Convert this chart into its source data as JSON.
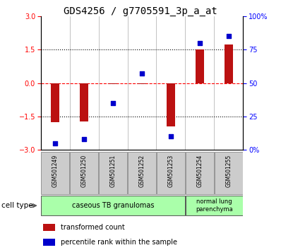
{
  "title": "GDS4256 / g7705591_3p_a_at",
  "samples": [
    "GSM501249",
    "GSM501250",
    "GSM501251",
    "GSM501252",
    "GSM501253",
    "GSM501254",
    "GSM501255"
  ],
  "transformed_count": [
    -1.75,
    -1.72,
    -0.05,
    -0.03,
    -1.95,
    1.52,
    1.72
  ],
  "percentile_rank": [
    5,
    8,
    35,
    57,
    10,
    80,
    85
  ],
  "ylim_left": [
    -3,
    3
  ],
  "ylim_right": [
    0,
    100
  ],
  "yticks_left": [
    -3,
    -1.5,
    0,
    1.5,
    3
  ],
  "yticks_right": [
    0,
    25,
    50,
    75,
    100
  ],
  "ytick_labels_right": [
    "0%",
    "25",
    "50",
    "75",
    "100%"
  ],
  "hlines": [
    -1.5,
    0,
    1.5
  ],
  "hline_styles": [
    "dotted",
    "dashed",
    "dotted"
  ],
  "hline_colors": [
    "black",
    "red",
    "black"
  ],
  "bar_color": "#bb1111",
  "dot_color": "#0000cc",
  "bar_width": 0.28,
  "group1_label": "caseous TB granulomas",
  "group2_label": "normal lung\nparenchyma",
  "group_color": "#aaffaa",
  "cell_type_label": "cell type",
  "legend_red_label": "transformed count",
  "legend_blue_label": "percentile rank within the sample",
  "title_fontsize": 10,
  "tick_fontsize": 7,
  "label_fontsize": 7.5,
  "sample_box_color": "#cccccc",
  "sample_box_edge": "#888888"
}
